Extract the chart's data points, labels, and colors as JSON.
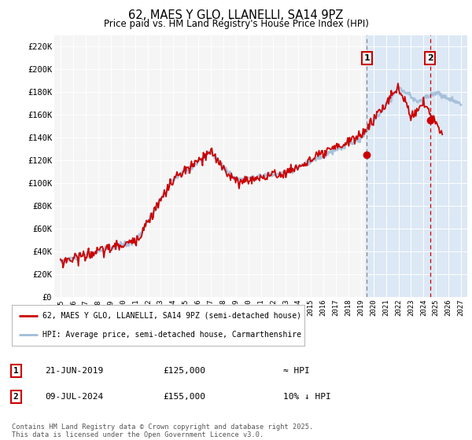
{
  "title": "62, MAES Y GLO, LLANELLI, SA14 9PZ",
  "subtitle": "Price paid vs. HM Land Registry's House Price Index (HPI)",
  "ylim": [
    0,
    230000
  ],
  "yticks": [
    0,
    20000,
    40000,
    60000,
    80000,
    100000,
    120000,
    140000,
    160000,
    180000,
    200000,
    220000
  ],
  "ytick_labels": [
    "£0",
    "£20K",
    "£40K",
    "£60K",
    "£80K",
    "£100K",
    "£120K",
    "£140K",
    "£160K",
    "£180K",
    "£200K",
    "£220K"
  ],
  "hpi_color": "#a0bcd8",
  "price_color": "#cc0000",
  "vline1_color": "#888888",
  "vline2_color": "#cc0000",
  "marker1_date": 2019.47,
  "marker2_date": 2024.52,
  "marker1_price": 125000,
  "marker2_price": 155000,
  "annotation1": "1",
  "annotation2": "2",
  "legend_label1": "62, MAES Y GLO, LLANELLI, SA14 9PZ (semi-detached house)",
  "legend_label2": "HPI: Average price, semi-detached house, Carmarthenshire",
  "table_row1": [
    "1",
    "21-JUN-2019",
    "£125,000",
    "≈ HPI"
  ],
  "table_row2": [
    "2",
    "09-JUL-2024",
    "£155,000",
    "10% ↓ HPI"
  ],
  "footnote": "Contains HM Land Registry data © Crown copyright and database right 2025.\nThis data is licensed under the Open Government Licence v3.0.",
  "xlim_start": 1994.5,
  "xlim_end": 2027.5,
  "xticks": [
    1995,
    1996,
    1997,
    1998,
    1999,
    2000,
    2001,
    2002,
    2003,
    2004,
    2005,
    2006,
    2007,
    2008,
    2009,
    2010,
    2011,
    2012,
    2013,
    2014,
    2015,
    2016,
    2017,
    2018,
    2019,
    2020,
    2021,
    2022,
    2023,
    2024,
    2025,
    2026,
    2027
  ],
  "shaded_region_start": 2019.4,
  "shaded_region_end": 2027.5,
  "background_color": "#ffffff",
  "plot_bg_color": "#f5f5f5",
  "shaded_color": "#dce8f5"
}
